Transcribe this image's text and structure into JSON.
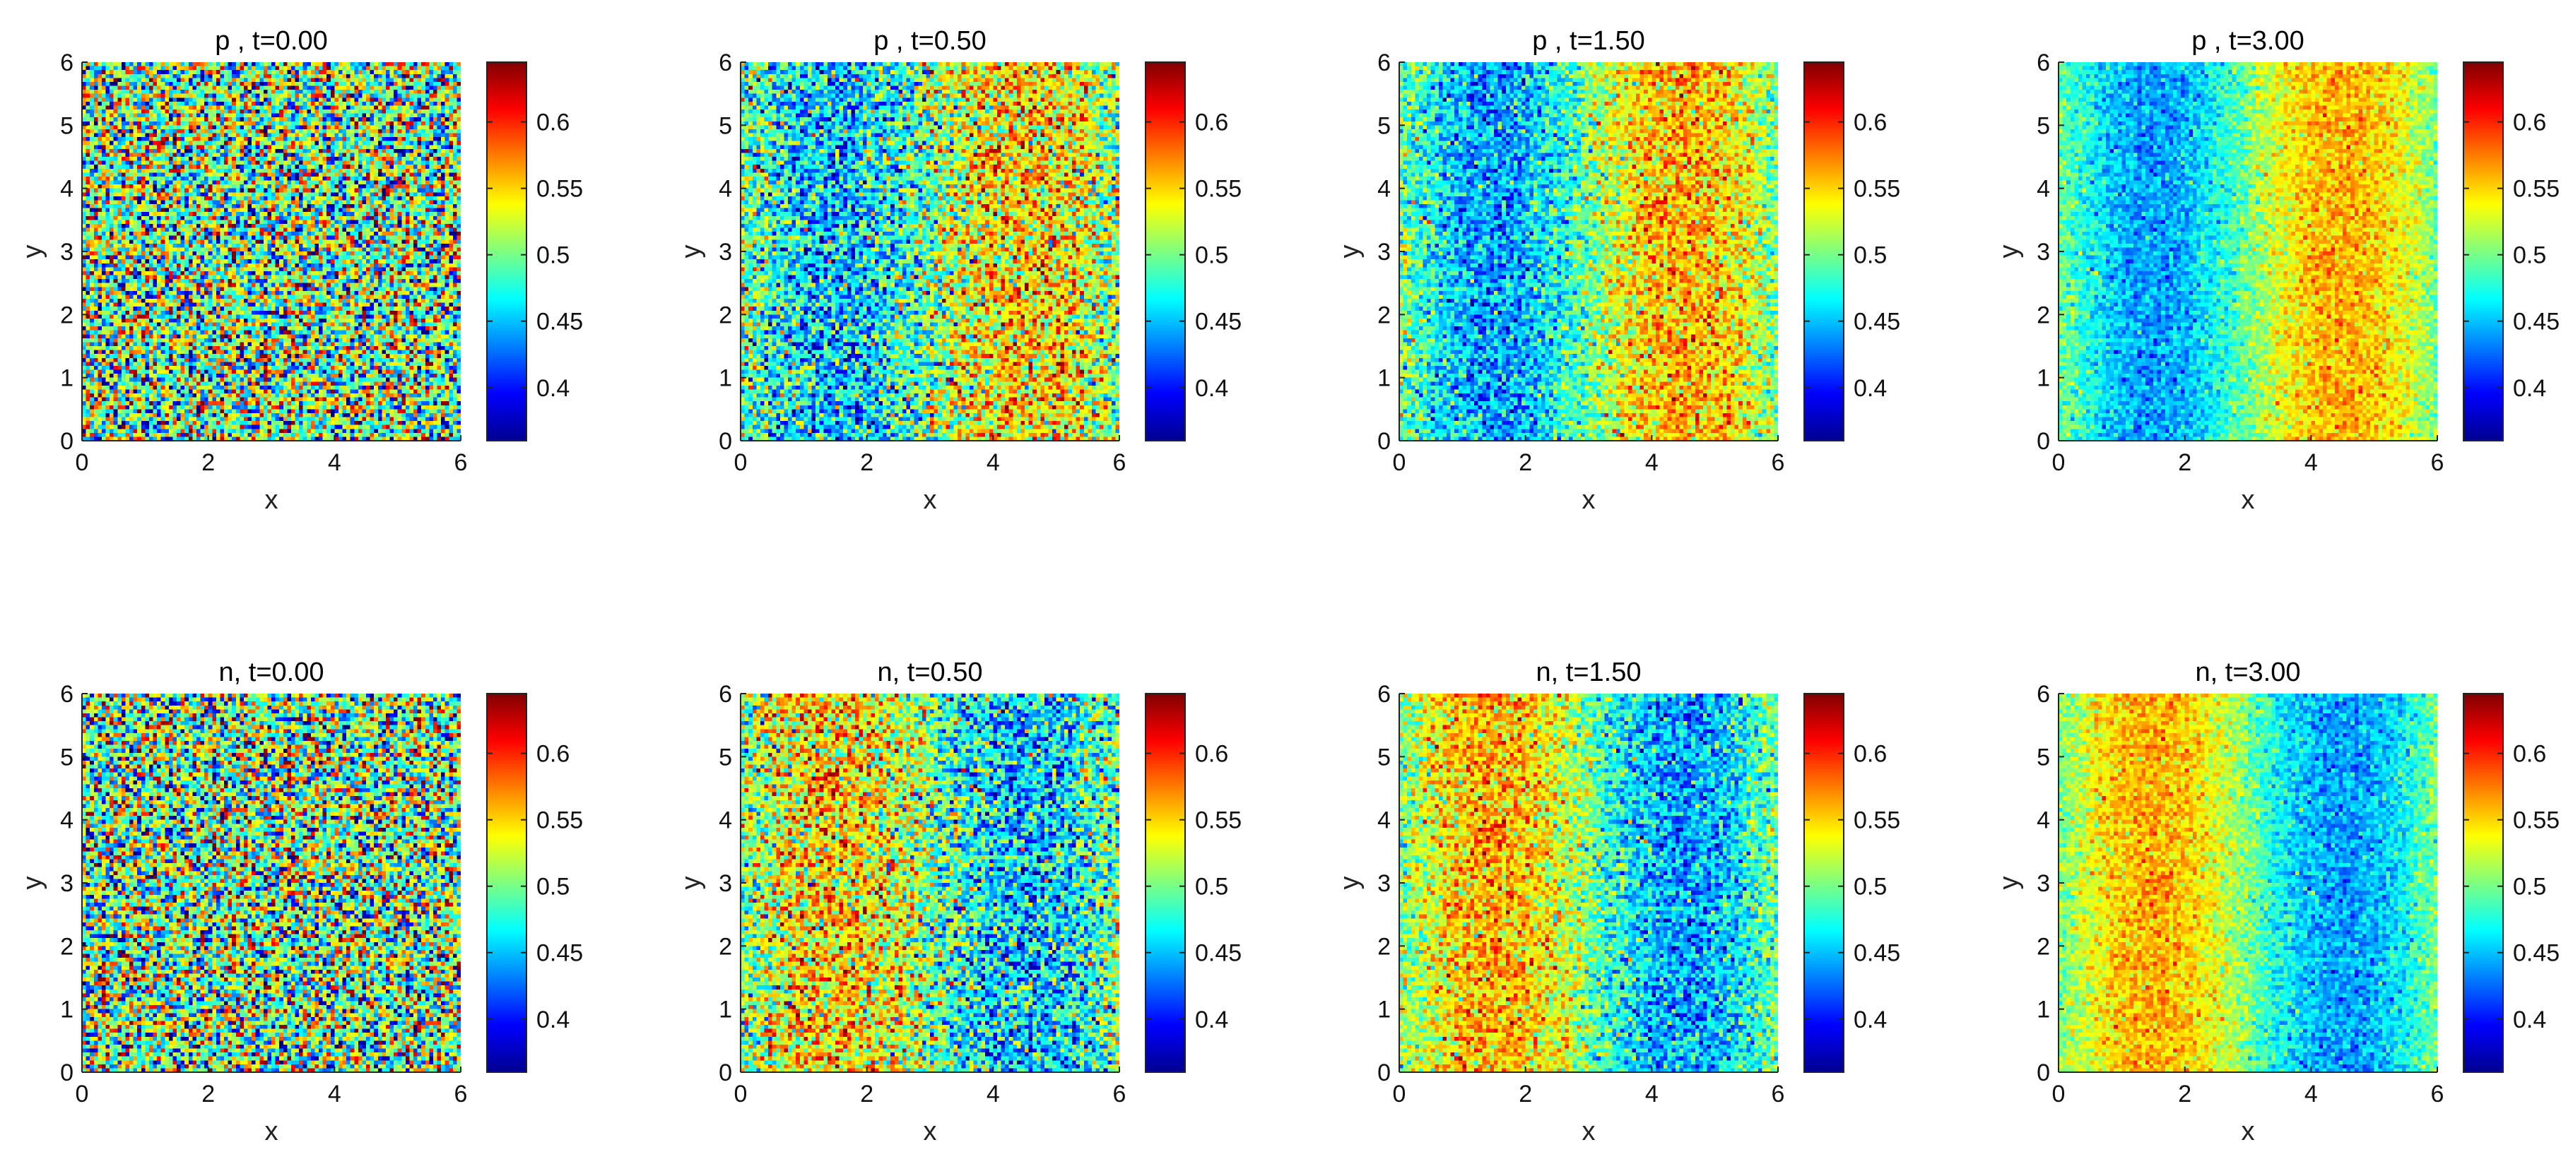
{
  "figure": {
    "panels": [
      {
        "title": "p , t=0.00",
        "field": "p",
        "t": 0.0
      },
      {
        "title": "p , t=0.50",
        "field": "p",
        "t": 0.5
      },
      {
        "title": "p , t=1.50",
        "field": "p",
        "t": 1.5
      },
      {
        "title": "p , t=3.00",
        "field": "p",
        "t": 3.0
      },
      {
        "title": "n, t=0.00",
        "field": "n",
        "t": 0.0
      },
      {
        "title": "n, t=0.50",
        "field": "n",
        "t": 0.5
      },
      {
        "title": "n, t=1.50",
        "field": "n",
        "t": 1.5
      },
      {
        "title": "n, t=3.00",
        "field": "n",
        "t": 3.0
      }
    ]
  },
  "chart_data": {
    "type": "heatmap",
    "layout": "2x4 grid",
    "xlabel": "x",
    "ylabel": "y",
    "xlim": [
      0,
      6
    ],
    "ylim": [
      0,
      6
    ],
    "x_ticks": [
      "0",
      "2",
      "4",
      "6"
    ],
    "y_ticks": [
      "0",
      "1",
      "2",
      "3",
      "4",
      "5",
      "6"
    ],
    "colormap": "jet",
    "colorbar": {
      "limits": [
        0.36,
        0.645
      ],
      "ticks": [
        "0.4",
        "0.45",
        "0.5",
        "0.55",
        "0.6"
      ],
      "tick_values": [
        0.4,
        0.45,
        0.5,
        0.55,
        0.6
      ]
    },
    "pattern": {
      "p": {
        "low_band_x": 1.5,
        "high_band_x": 4.5
      },
      "n": {
        "high_band_x": 1.5,
        "low_band_x": 4.5
      },
      "mean": 0.5,
      "amplitude": {
        "0.00": 0.0,
        "0.50": 0.05,
        "1.50": 0.06,
        "3.00": 0.06
      },
      "noise": {
        "0.00": 0.07,
        "0.50": 0.045,
        "1.50": 0.03,
        "3.00": 0.018
      }
    }
  }
}
